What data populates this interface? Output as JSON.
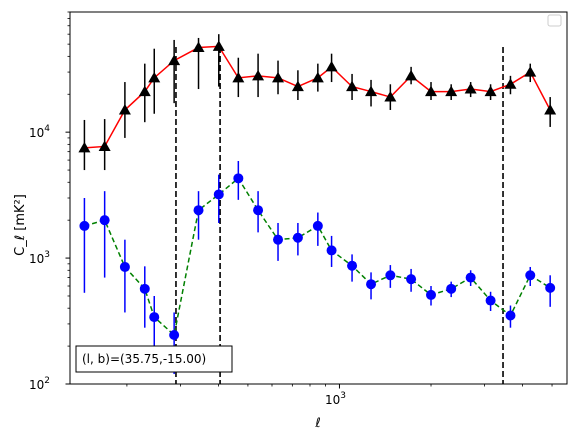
{
  "chart_data": {
    "type": "line",
    "xscale": "log",
    "yscale": "log",
    "xlim": [
      130,
      5600
    ],
    "ylim": [
      100,
      90000
    ],
    "xlabel": "ℓ",
    "ylabel": "C_ℓ  [mK²]",
    "grid": false,
    "legend": {
      "placement": "top-right",
      "entries": []
    },
    "x_major_ticks": [
      {
        "value": 1000,
        "label": "10",
        "exponent": "3"
      }
    ],
    "y_major_ticks": [
      {
        "value": 100,
        "label": "10",
        "exponent": "2"
      },
      {
        "value": 1000,
        "label": "10",
        "exponent": "3"
      },
      {
        "value": 10000,
        "label": "10",
        "exponent": "4"
      }
    ],
    "vlines": [
      290,
      405,
      3450
    ],
    "annotation": "(l, b)=(35.75,-15.00)",
    "series": [
      {
        "color": "#ff0000",
        "marker": "triangle",
        "marker_color": "#000000",
        "errorbar_color": "#000000",
        "linestyle": "solid",
        "x": [
          145,
          169,
          197,
          229,
          246,
          286,
          344,
          401,
          465,
          540,
          628,
          730,
          849,
          942,
          1100,
          1270,
          1470,
          1720,
          2000,
          2330,
          2700,
          3140,
          3650,
          4240,
          4930
        ],
        "y": [
          7500,
          7700,
          15000,
          21000,
          27000,
          37000,
          47000,
          48000,
          27000,
          28000,
          27000,
          23000,
          27000,
          33000,
          23000,
          21000,
          19000,
          28000,
          21000,
          21000,
          22000,
          21000,
          24000,
          30000,
          15000
        ],
        "yerr_low": [
          2500,
          2700,
          6000,
          9000,
          13000,
          20000,
          25000,
          25000,
          8000,
          9000,
          7000,
          5000,
          6000,
          8000,
          5000,
          5000,
          4000,
          4000,
          3000,
          3000,
          3000,
          3000,
          4000,
          5000,
          4000
        ],
        "yerr_high": [
          5000,
          5000,
          10000,
          14000,
          19000,
          17000,
          9000,
          12000,
          12000,
          14000,
          10000,
          8000,
          8000,
          9000,
          6000,
          5000,
          5000,
          5000,
          4000,
          3000,
          3000,
          3000,
          4000,
          5000,
          4000
        ]
      },
      {
        "color": "#008000",
        "marker": "circle",
        "marker_color": "#0000ff",
        "errorbar_color": "#0000ff",
        "linestyle": "dashed",
        "x": [
          145,
          169,
          197,
          229,
          246,
          286,
          344,
          401,
          465,
          540,
          628,
          730,
          849,
          942,
          1100,
          1270,
          1470,
          1720,
          2000,
          2330,
          2700,
          3140,
          3650,
          4240,
          4930
        ],
        "y": [
          1800,
          2000,
          850,
          570,
          340,
          245,
          2400,
          3200,
          4300,
          2400,
          1400,
          1450,
          1800,
          1150,
          870,
          620,
          730,
          680,
          510,
          570,
          700,
          460,
          350,
          730,
          580
        ],
        "yerr_low": [
          1270,
          1300,
          480,
          290,
          170,
          125,
          1000,
          1300,
          1400,
          800,
          450,
          400,
          550,
          300,
          220,
          150,
          150,
          140,
          90,
          80,
          100,
          80,
          70,
          130,
          170
        ],
        "yerr_high": [
          1200,
          1400,
          550,
          290,
          160,
          125,
          1000,
          1400,
          1600,
          1000,
          500,
          450,
          500,
          350,
          200,
          150,
          150,
          140,
          90,
          80,
          100,
          80,
          70,
          120,
          150
        ]
      }
    ]
  }
}
